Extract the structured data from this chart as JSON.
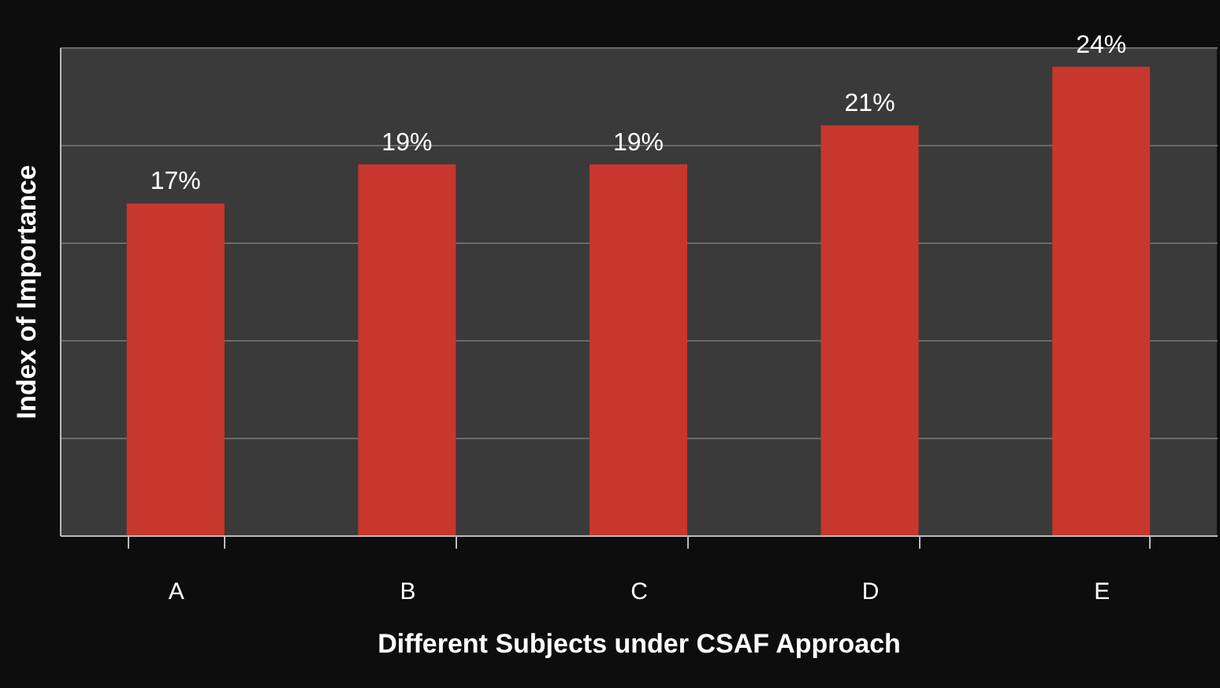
{
  "chart_data": {
    "type": "bar",
    "xlabel": "Different Subjects under CSAF Approach",
    "ylabel": "Index of Importance",
    "categories": [
      "A",
      "B",
      "C",
      "D",
      "E"
    ],
    "values": [
      17,
      19,
      19,
      21,
      24
    ],
    "color": "#c8372d",
    "value_labels": [
      "17%",
      "19%",
      "19%",
      "21%",
      "24%"
    ],
    "ylim": [
      0,
      25
    ],
    "yticks": [
      {
        "value": 0,
        "label": null
      },
      {
        "value": 5,
        "label": null
      },
      {
        "value": 10,
        "label": null
      },
      {
        "value": 15,
        "label": null
      },
      {
        "value": 20,
        "label": null
      },
      {
        "value": 25,
        "label": null
      }
    ],
    "tick_labels": "x",
    "grid": "y"
  }
}
